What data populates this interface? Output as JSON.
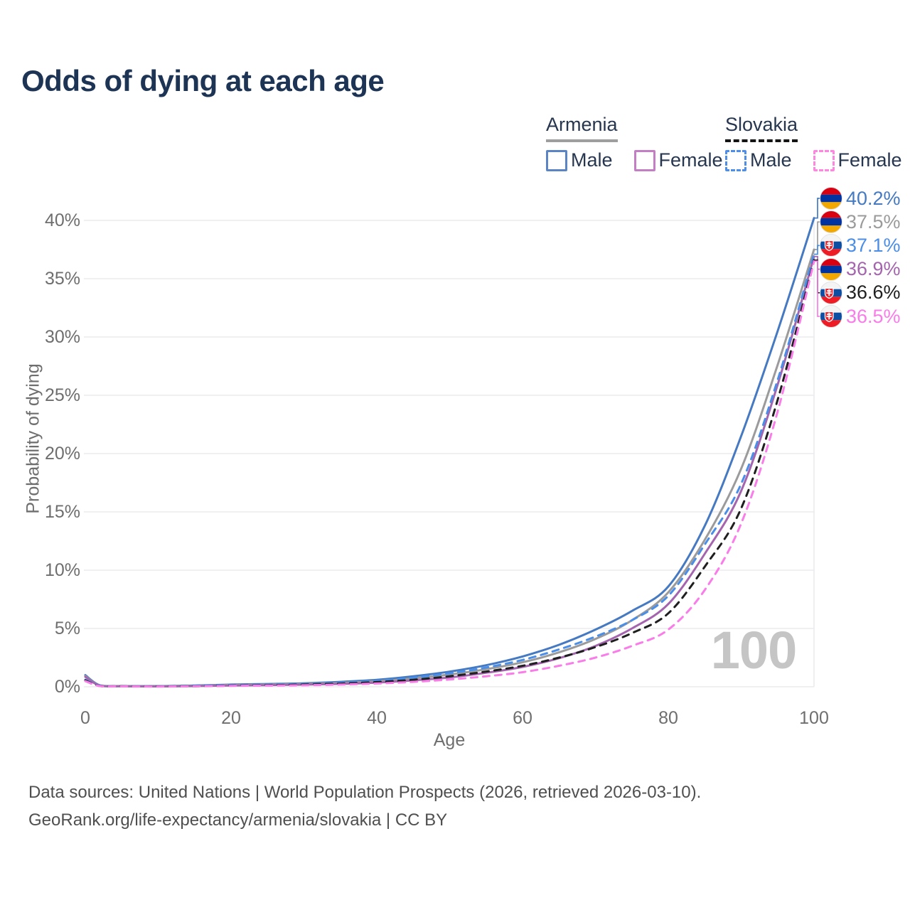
{
  "title": "Odds of dying at each age",
  "watermark": "100",
  "footer": {
    "line1": "Data sources: United Nations | World Population Prospects (2026, retrieved 2026-03-10).",
    "line2": "GeoRank.org/life-expectancy/armenia/slovakia | CC BY"
  },
  "legend": {
    "groups": [
      {
        "label": "Armenia",
        "underline": "solid",
        "underline_color": "#9e9e9e",
        "items": [
          {
            "label": "Male",
            "style": "solid",
            "color": "#5b84c4"
          },
          {
            "label": "Female",
            "style": "solid",
            "color": "#c47ec4"
          }
        ]
      },
      {
        "label": "Slovakia",
        "underline": "dashed",
        "underline_color": "#141414",
        "items": [
          {
            "label": "Male",
            "style": "dashed",
            "color": "#4d8fe8"
          },
          {
            "label": "Female",
            "style": "dashed",
            "color": "#ff85e0"
          }
        ]
      }
    ]
  },
  "axes": {
    "x_label": "Age",
    "y_label": "Probability of dying",
    "x_ticks": [
      0,
      20,
      40,
      60,
      80,
      100
    ],
    "y_ticks": [
      {
        "value": 0,
        "label": "0%"
      },
      {
        "value": 5,
        "label": "5%"
      },
      {
        "value": 10,
        "label": "10%"
      },
      {
        "value": 15,
        "label": "15%"
      },
      {
        "value": 20,
        "label": "20%"
      },
      {
        "value": 25,
        "label": "25%"
      },
      {
        "value": 30,
        "label": "30%"
      },
      {
        "value": 35,
        "label": "35%"
      },
      {
        "value": 40,
        "label": "40%"
      }
    ]
  },
  "chart_data": {
    "type": "line",
    "title": "Odds of dying at each age",
    "xlabel": "Age",
    "ylabel": "Probability of dying",
    "xlim": [
      0,
      100
    ],
    "ylim_percent": [
      0,
      42
    ],
    "grid": "horizontal",
    "legend_position": "top-right",
    "x": [
      0,
      2,
      5,
      10,
      15,
      20,
      25,
      30,
      35,
      40,
      45,
      50,
      55,
      60,
      65,
      70,
      75,
      80,
      85,
      90,
      95,
      100
    ],
    "series": [
      {
        "name": "Armenia Male",
        "country": "armenia",
        "dash": false,
        "color": "#4579c2",
        "end_label": "40.2%",
        "end_value": 40.2,
        "values": [
          1.0,
          0.12,
          0.06,
          0.06,
          0.11,
          0.19,
          0.24,
          0.3,
          0.42,
          0.6,
          0.9,
          1.3,
          1.85,
          2.6,
          3.6,
          4.9,
          6.5,
          8.6,
          13.8,
          21.5,
          30.5,
          40.2
        ]
      },
      {
        "name": "Armenia",
        "country": "armenia",
        "dash": false,
        "color": "#9b9b9b",
        "end_label": "37.5%",
        "end_value": 37.5,
        "values": [
          0.92,
          0.1,
          0.05,
          0.04,
          0.08,
          0.15,
          0.19,
          0.24,
          0.33,
          0.48,
          0.72,
          1.05,
          1.5,
          2.1,
          2.95,
          4.1,
          5.7,
          8.1,
          12.6,
          18.7,
          27.6,
          37.5
        ]
      },
      {
        "name": "Slovakia Male",
        "country": "slovakia",
        "dash": true,
        "color": "#4a8ee8",
        "end_label": "37.1%",
        "end_value": 37.1,
        "values": [
          0.6,
          0.09,
          0.05,
          0.05,
          0.09,
          0.15,
          0.17,
          0.23,
          0.33,
          0.5,
          0.78,
          1.15,
          1.65,
          2.3,
          3.2,
          4.3,
          5.7,
          7.8,
          12.2,
          17.4,
          26.3,
          37.1
        ]
      },
      {
        "name": "Armenia Female",
        "country": "armenia",
        "dash": false,
        "color": "#a465ae",
        "end_label": "36.9%",
        "end_value": 36.9,
        "values": [
          0.85,
          0.09,
          0.04,
          0.03,
          0.06,
          0.11,
          0.14,
          0.18,
          0.25,
          0.36,
          0.55,
          0.8,
          1.2,
          1.7,
          2.45,
          3.5,
          5.0,
          7.1,
          11.4,
          16.8,
          25.9,
          36.9
        ]
      },
      {
        "name": "Slovakia",
        "country": "slovakia",
        "dash": true,
        "color": "#1f1f1f",
        "end_label": "36.6%",
        "end_value": 36.6,
        "values": [
          0.55,
          0.07,
          0.04,
          0.03,
          0.05,
          0.1,
          0.13,
          0.19,
          0.27,
          0.4,
          0.6,
          0.9,
          1.3,
          1.8,
          2.5,
          3.4,
          4.6,
          6.3,
          10.3,
          15.3,
          24.6,
          36.6
        ]
      },
      {
        "name": "Slovakia Female",
        "country": "slovakia",
        "dash": true,
        "color": "#fa7ce9",
        "end_label": "36.5%",
        "end_value": 36.5,
        "values": [
          0.48,
          0.06,
          0.03,
          0.02,
          0.04,
          0.08,
          0.1,
          0.13,
          0.19,
          0.28,
          0.42,
          0.62,
          0.9,
          1.25,
          1.8,
          2.5,
          3.5,
          4.9,
          8.3,
          14.0,
          23.6,
          36.5
        ]
      }
    ],
    "flags": {
      "armenia": {
        "stripes": [
          "#d90012",
          "#0033a0",
          "#f2a800"
        ]
      },
      "slovakia": {
        "stripes": [
          "#f4f4f4",
          "#0b4ea2",
          "#ee1c25"
        ],
        "crest": {
          "shield": "#ee1c25",
          "cross": "#ffffff"
        }
      }
    },
    "colors": {
      "gridline": "#ebebee",
      "tick_text": "#6e6e6e",
      "watermark": "#c5c5c5"
    }
  }
}
